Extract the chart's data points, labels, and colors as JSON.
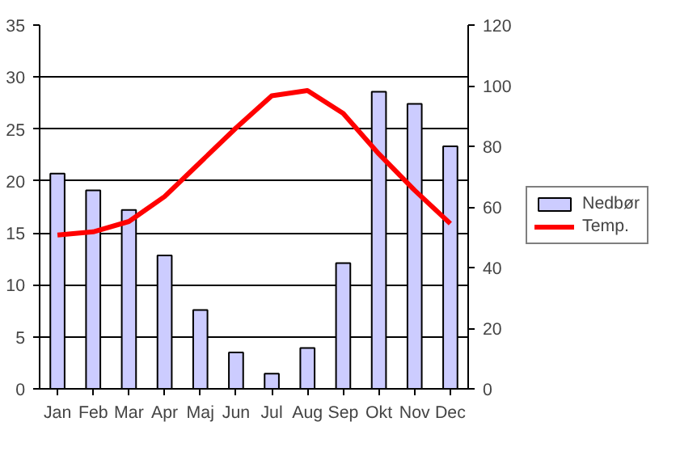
{
  "chart_data": {
    "type": "bar",
    "categories": [
      "Jan",
      "Feb",
      "Mar",
      "Apr",
      "Maj",
      "Jun",
      "Jul",
      "Aug",
      "Sep",
      "Okt",
      "Nov",
      "Dec"
    ],
    "series": [
      {
        "name": "Nedbør",
        "axis": "y2",
        "color": "#ccccff",
        "values": [
          71,
          65.5,
          59,
          44,
          26,
          12,
          5,
          13.5,
          41.5,
          98,
          94,
          80
        ]
      },
      {
        "name": "Temp.",
        "type": "line",
        "axis": "y",
        "color": "#ff0000",
        "values": [
          14.8,
          15.1,
          16.1,
          18.5,
          21.8,
          25.1,
          28.2,
          28.7,
          26.5,
          22.6,
          19.1,
          15.9
        ]
      }
    ],
    "ylim": [
      0,
      35
    ],
    "yticks": [
      0,
      5,
      10,
      15,
      20,
      25,
      30,
      35
    ],
    "y2lim": [
      0,
      120
    ],
    "y2ticks": [
      0,
      20,
      40,
      60,
      80,
      100,
      120
    ],
    "grid": "y",
    "legend": "right",
    "marker": "none",
    "line_style": "solid"
  }
}
